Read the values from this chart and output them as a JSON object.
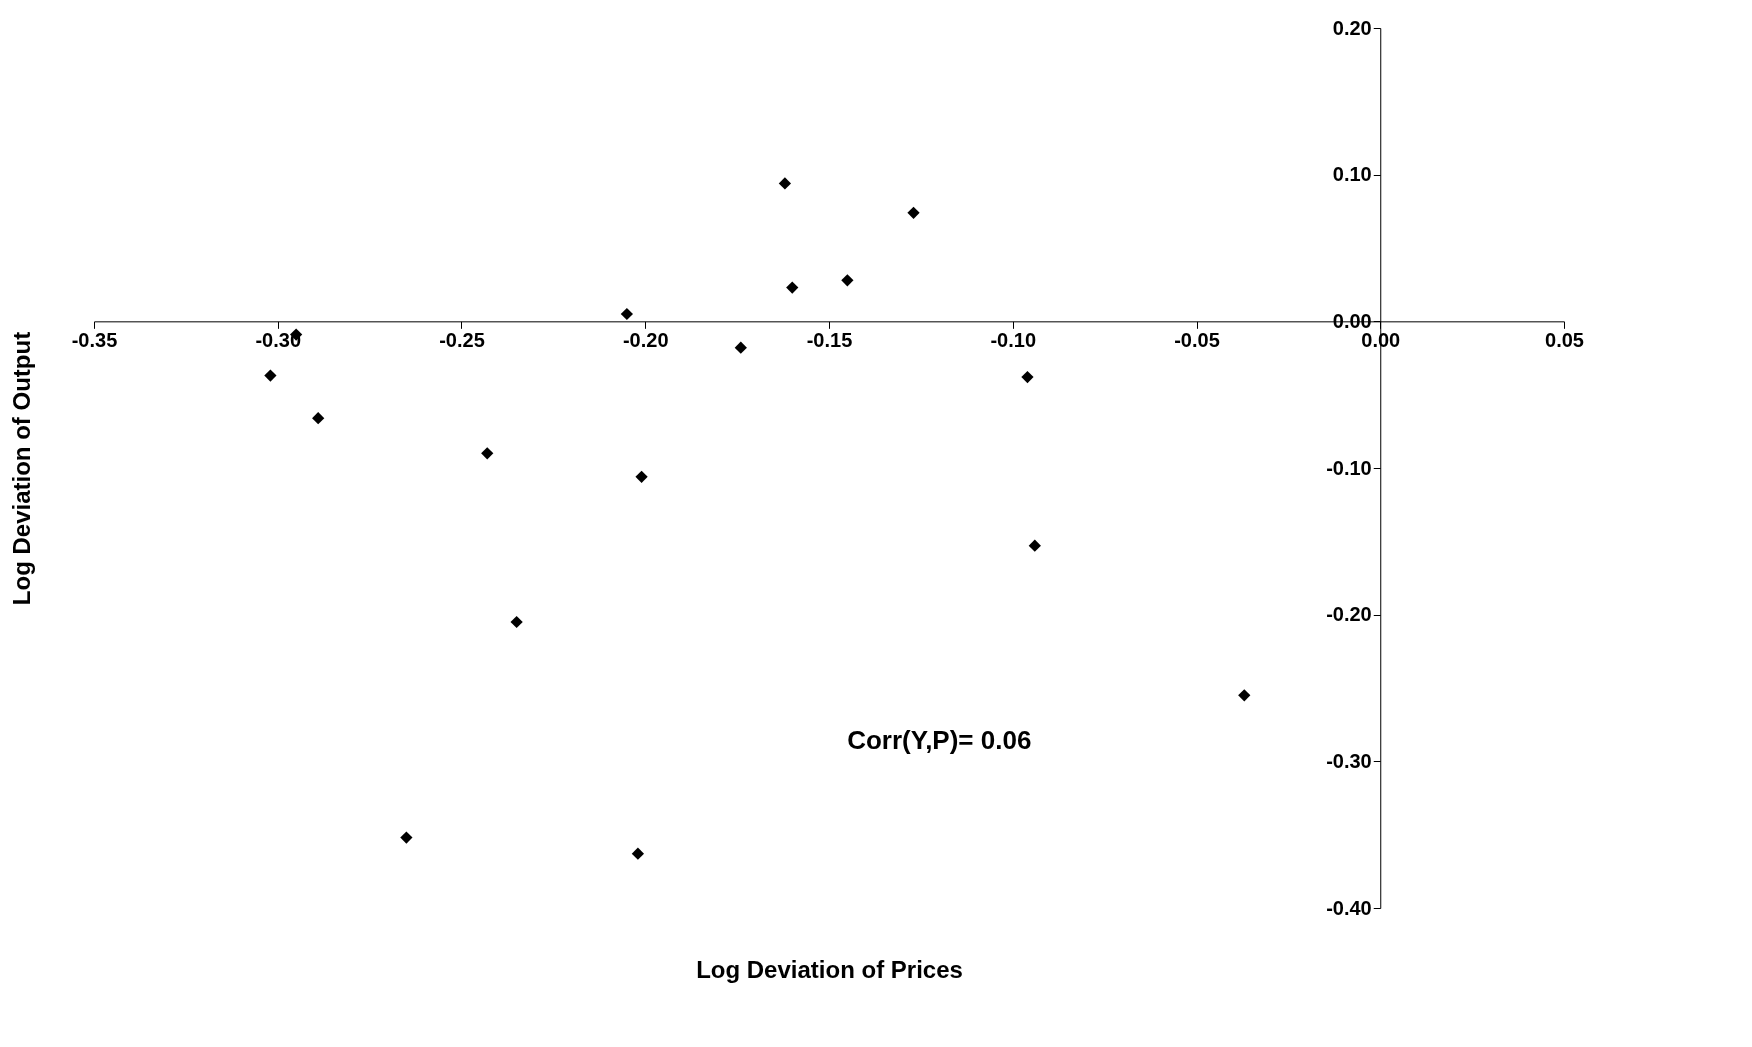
{
  "chart_data": {
    "type": "scatter",
    "xlabel": "Log Deviation of Prices",
    "ylabel": "Log Deviation of Output",
    "x": [
      -0.162,
      -0.127,
      -0.145,
      -0.16,
      -0.205,
      -0.174,
      -0.295,
      -0.302,
      -0.289,
      -0.243,
      -0.201,
      -0.096,
      -0.094,
      -0.235,
      -0.037,
      -0.265,
      -0.202
    ],
    "series": [
      {
        "color": "#000000",
        "values": [
          0.094,
          0.074,
          0.028,
          0.023,
          0.005,
          -0.018,
          -0.009,
          -0.037,
          -0.066,
          -0.09,
          -0.106,
          -0.038,
          -0.153,
          -0.205,
          -0.255,
          -0.352,
          -0.363
        ]
      }
    ],
    "xlim": [
      -0.35,
      0.05
    ],
    "xticks": [
      {
        "value": -0.35,
        "label": "-0.35"
      },
      {
        "value": -0.3,
        "label": "-0.30"
      },
      {
        "value": -0.25,
        "label": "-0.25"
      },
      {
        "value": -0.2,
        "label": "-0.20"
      },
      {
        "value": -0.15,
        "label": "-0.15"
      },
      {
        "value": -0.1,
        "label": "-0.10"
      },
      {
        "value": -0.05,
        "label": "-0.05"
      },
      {
        "value": 0,
        "label": "0.00"
      },
      {
        "value": 0.05,
        "label": "0.05"
      }
    ],
    "ylim": [
      -0.4,
      0.2
    ],
    "yticks": [
      {
        "value": -0.4,
        "label": "-0.40"
      },
      {
        "value": -0.3,
        "label": "-0.30"
      },
      {
        "value": -0.2,
        "label": "-0.20"
      },
      {
        "value": -0.1,
        "label": "-0.10"
      },
      {
        "value": 0,
        "label": "0.00"
      },
      {
        "value": 0.1,
        "label": "0.10"
      },
      {
        "value": 0.2,
        "label": "0.20"
      }
    ],
    "marker": "diamond",
    "grid": false,
    "annotations": [
      "Corr(Y,P)= 0.06"
    ]
  }
}
